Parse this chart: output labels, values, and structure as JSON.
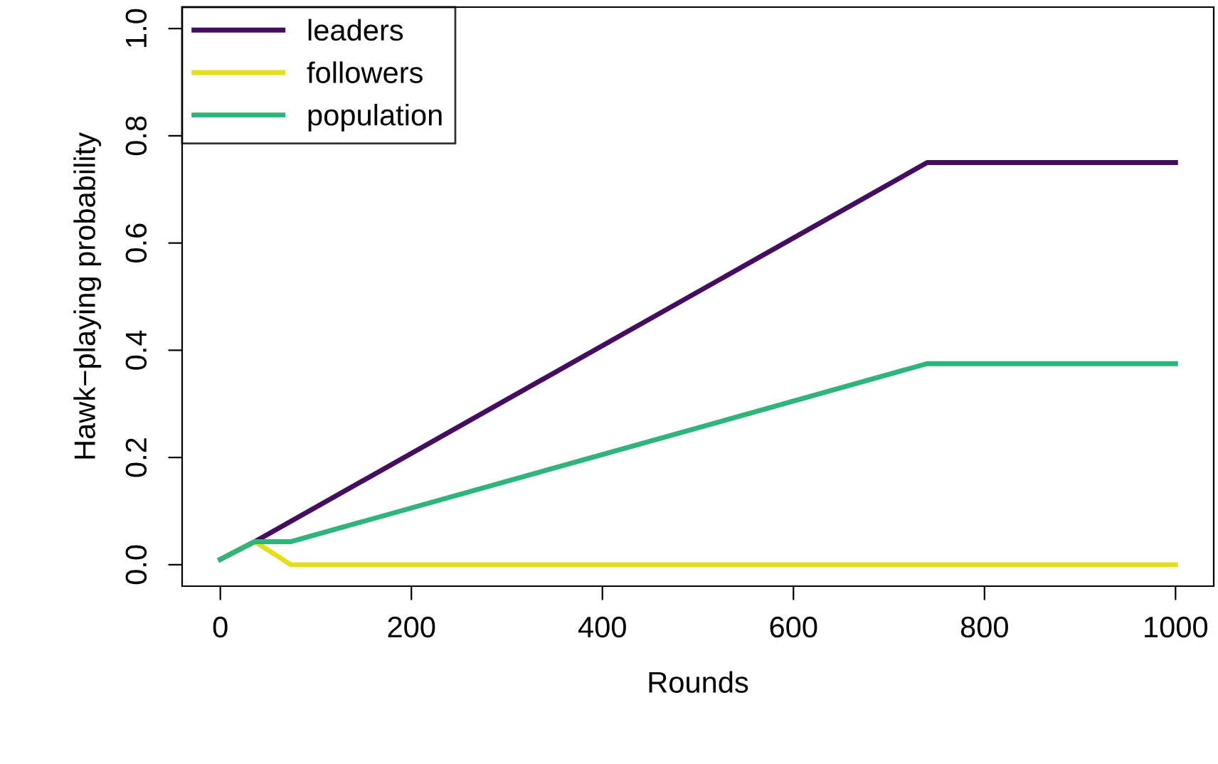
{
  "chart_data": {
    "type": "line",
    "xlabel": "Rounds",
    "ylabel": "Hawk−playing probability",
    "xlim": [
      -40,
      1040
    ],
    "ylim": [
      -0.04,
      1.04
    ],
    "xticks": [
      0,
      200,
      400,
      600,
      800,
      1000
    ],
    "yticks": [
      {
        "value": 0,
        "label": "0.0"
      },
      0.2,
      0.4,
      0.6,
      0.8,
      {
        "value": 1,
        "label": "1.0"
      }
    ],
    "grid": false,
    "legend": "top left",
    "line_style": "solid",
    "marker": "none",
    "series": [
      {
        "name": "leaders",
        "color": "#440d60",
        "x": [
          0,
          36,
          740,
          1000
        ],
        "values": [
          0.01,
          0.043,
          0.75,
          0.75
        ]
      },
      {
        "name": "followers",
        "color": "#e3df1c",
        "x": [
          0,
          36,
          74,
          1000
        ],
        "values": [
          0.01,
          0.043,
          0.0,
          0.0
        ]
      },
      {
        "name": "population",
        "color": "#2fb47c",
        "x": [
          0,
          36,
          74,
          740,
          1000
        ],
        "values": [
          0.01,
          0.043,
          0.043,
          0.375,
          0.375
        ]
      }
    ]
  }
}
